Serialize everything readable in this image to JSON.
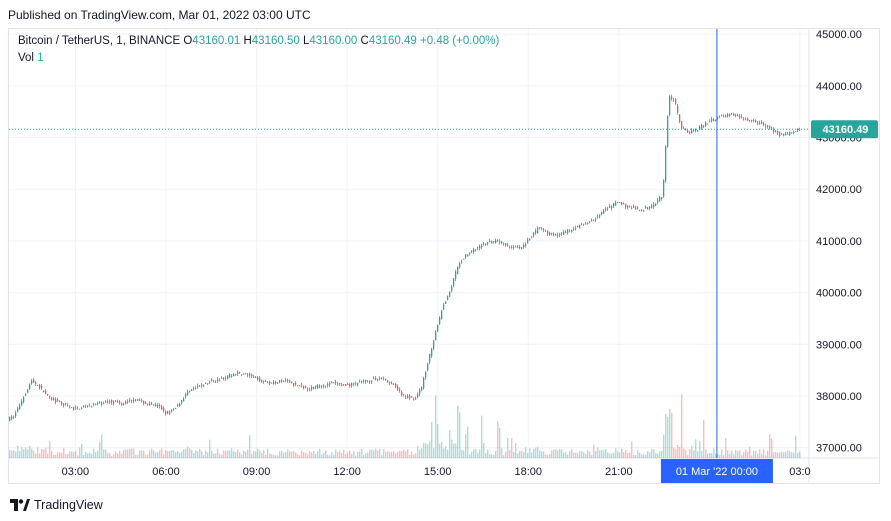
{
  "header": {
    "published": "Published on TradingView.com, Mar 01, 2022 03:00 UTC"
  },
  "legend": {
    "symbol": "Bitcoin / TetherUS, 1, BINANCE",
    "o_label": "O",
    "o_value": "43160.01",
    "h_label": "H",
    "h_value": "43160.50",
    "l_label": "L",
    "l_value": "43160.00",
    "c_label": "C",
    "c_value": "43160.49",
    "change": "+0.48 (+0.00%)",
    "vol_label": "Vol",
    "vol_value": "1"
  },
  "footer": {
    "brand": "TradingView"
  },
  "colors": {
    "up": "#26a69a",
    "down": "#ef5350",
    "crosshair": "#2962ff",
    "grid": "#f0f3fa"
  },
  "chart_data": {
    "type": "candlestick",
    "price_axis": {
      "min": 36800,
      "max": 45100,
      "ticks": [
        37000,
        38000,
        39000,
        40000,
        41000,
        42000,
        43000,
        44000,
        45000
      ],
      "tick_labels": [
        "37000.00",
        "38000.00",
        "39000.00",
        "40000.00",
        "41000.00",
        "42000.00",
        "43000.00",
        "44000.00",
        "45000.00"
      ]
    },
    "time_axis": {
      "start_hour": 0.8,
      "end_hour": 27.3,
      "ticks": [
        3,
        6,
        9,
        12,
        15,
        18,
        21,
        27
      ],
      "tick_labels": [
        "03:00",
        "06:00",
        "09:00",
        "12:00",
        "15:00",
        "18:00",
        "21:00",
        "03:0"
      ]
    },
    "crosshair": {
      "hour": 24.25,
      "label": "01 Mar '22   00:00"
    },
    "last_price": {
      "value": 43160.49,
      "label": "43160.49"
    },
    "price_path": [
      [
        0.8,
        37550
      ],
      [
        1.0,
        37600
      ],
      [
        1.3,
        37950
      ],
      [
        1.6,
        38300
      ],
      [
        1.9,
        38150
      ],
      [
        2.2,
        37950
      ],
      [
        2.6,
        37850
      ],
      [
        3.0,
        37750
      ],
      [
        3.4,
        37800
      ],
      [
        3.8,
        37850
      ],
      [
        4.2,
        37900
      ],
      [
        4.6,
        37850
      ],
      [
        5.0,
        37950
      ],
      [
        5.4,
        37850
      ],
      [
        5.8,
        37800
      ],
      [
        6.1,
        37650
      ],
      [
        6.4,
        37800
      ],
      [
        6.8,
        38100
      ],
      [
        7.2,
        38200
      ],
      [
        7.6,
        38300
      ],
      [
        8.0,
        38350
      ],
      [
        8.4,
        38450
      ],
      [
        8.8,
        38400
      ],
      [
        9.2,
        38300
      ],
      [
        9.6,
        38250
      ],
      [
        10.0,
        38300
      ],
      [
        10.4,
        38200
      ],
      [
        10.8,
        38150
      ],
      [
        11.2,
        38200
      ],
      [
        11.6,
        38250
      ],
      [
        12.0,
        38200
      ],
      [
        12.4,
        38250
      ],
      [
        12.8,
        38300
      ],
      [
        13.2,
        38350
      ],
      [
        13.6,
        38200
      ],
      [
        13.9,
        38000
      ],
      [
        14.3,
        37950
      ],
      [
        14.5,
        38150
      ],
      [
        14.7,
        38600
      ],
      [
        15.0,
        39300
      ],
      [
        15.2,
        39700
      ],
      [
        15.5,
        40100
      ],
      [
        15.7,
        40500
      ],
      [
        16.0,
        40750
      ],
      [
        16.3,
        40850
      ],
      [
        16.6,
        40950
      ],
      [
        17.0,
        41000
      ],
      [
        17.4,
        40900
      ],
      [
        17.8,
        40850
      ],
      [
        18.1,
        41050
      ],
      [
        18.4,
        41250
      ],
      [
        18.7,
        41150
      ],
      [
        19.0,
        41100
      ],
      [
        19.4,
        41200
      ],
      [
        19.8,
        41300
      ],
      [
        20.2,
        41400
      ],
      [
        20.6,
        41600
      ],
      [
        21.0,
        41750
      ],
      [
        21.4,
        41650
      ],
      [
        21.8,
        41600
      ],
      [
        22.2,
        41700
      ],
      [
        22.5,
        41900
      ],
      [
        22.7,
        43800
      ],
      [
        22.9,
        43700
      ],
      [
        23.1,
        43200
      ],
      [
        23.3,
        43100
      ],
      [
        23.6,
        43150
      ],
      [
        24.0,
        43300
      ],
      [
        24.4,
        43400
      ],
      [
        24.8,
        43450
      ],
      [
        25.2,
        43350
      ],
      [
        25.6,
        43300
      ],
      [
        26.0,
        43200
      ],
      [
        26.4,
        43050
      ],
      [
        26.8,
        43100
      ],
      [
        27.0,
        43160
      ]
    ]
  }
}
